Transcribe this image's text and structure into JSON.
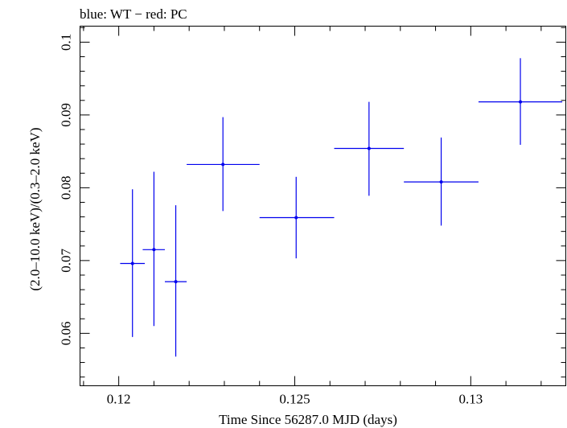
{
  "chart_data": {
    "type": "scatter",
    "title": "blue: WT − red: PC",
    "xlabel": "Time Since 56287.0 MJD (days)",
    "ylabel": "(2.0–10.0 keV)/(0.3–2.0 keV)",
    "xlim": [
      0.1189,
      0.1327
    ],
    "ylim": [
      0.0528,
      0.1022
    ],
    "x_ticks": [
      "0.12",
      "0.125",
      "0.13"
    ],
    "x_tick_values": [
      0.12,
      0.125,
      0.13
    ],
    "y_ticks": [
      "0.06",
      "0.07",
      "0.08",
      "0.09",
      "0.1"
    ],
    "y_tick_values": [
      0.06,
      0.07,
      0.08,
      0.09,
      0.1
    ],
    "grid": false,
    "series": [
      {
        "color": "#0000ee",
        "points": [
          {
            "x": 0.12039,
            "y": 0.0696,
            "xlo": 0.12004,
            "xhi": 0.12074,
            "ylo": 0.0595,
            "yhi": 0.0798
          },
          {
            "x": 0.121,
            "y": 0.0715,
            "xlo": 0.12068,
            "xhi": 0.12131,
            "ylo": 0.061,
            "yhi": 0.0822
          },
          {
            "x": 0.12162,
            "y": 0.0671,
            "xlo": 0.12131,
            "xhi": 0.12193,
            "ylo": 0.0568,
            "yhi": 0.0776
          },
          {
            "x": 0.12296,
            "y": 0.0832,
            "xlo": 0.12193,
            "xhi": 0.124,
            "ylo": 0.0768,
            "yhi": 0.0897
          },
          {
            "x": 0.12504,
            "y": 0.0759,
            "xlo": 0.124,
            "xhi": 0.12612,
            "ylo": 0.0703,
            "yhi": 0.0815
          },
          {
            "x": 0.12711,
            "y": 0.0854,
            "xlo": 0.12612,
            "xhi": 0.1281,
            "ylo": 0.0789,
            "yhi": 0.0918
          },
          {
            "x": 0.12916,
            "y": 0.0808,
            "xlo": 0.1281,
            "xhi": 0.13022,
            "ylo": 0.0748,
            "yhi": 0.0869
          },
          {
            "x": 0.13141,
            "y": 0.0918,
            "xlo": 0.13022,
            "xhi": 0.1326,
            "ylo": 0.0859,
            "yhi": 0.0978
          }
        ]
      }
    ]
  }
}
